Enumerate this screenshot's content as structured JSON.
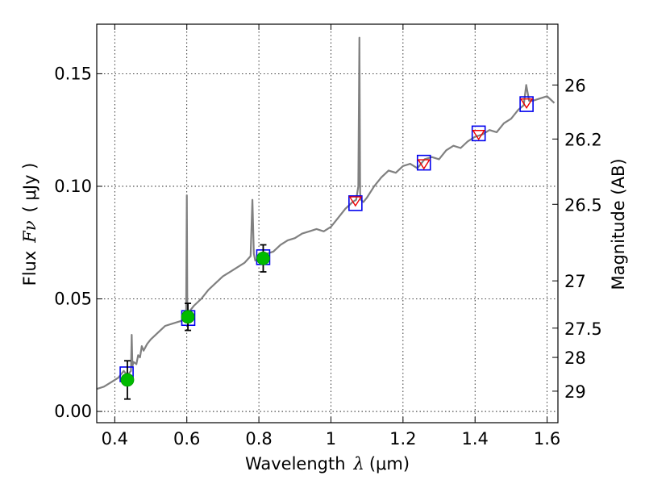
{
  "chart_data": {
    "type": "line",
    "title": "",
    "xlabel": "Wavelength",
    "xlabel_symbol": "λ",
    "xlabel_unit": "(μm)",
    "ylabel": "Flux",
    "ylabel_symbol": "Fν",
    "ylabel_unit": "( μJy )",
    "y2label": "Magnitude (AB)",
    "xlim": [
      0.35,
      1.63
    ],
    "ylim": [
      -0.005,
      0.172
    ],
    "x_ticks": [
      0.4,
      0.6,
      0.8,
      1.0,
      1.2,
      1.4,
      1.6
    ],
    "x_tick_labels": [
      "0.4",
      "0.6",
      "0.8",
      "1",
      "1.2",
      "1.4",
      "1.6"
    ],
    "y_ticks": [
      0.0,
      0.05,
      0.1,
      0.15
    ],
    "y_tick_labels": [
      "0.00",
      "0.05",
      "0.10",
      "0.15"
    ],
    "y2_ticks": [
      {
        "flux": 0.145,
        "label": "26"
      },
      {
        "flux": 0.121,
        "label": "26.2"
      },
      {
        "flux": 0.092,
        "label": "26.5"
      },
      {
        "flux": 0.058,
        "label": "27"
      },
      {
        "flux": 0.037,
        "label": "27.5"
      },
      {
        "flux": 0.024,
        "label": "28"
      },
      {
        "flux": 0.009,
        "label": "29"
      }
    ],
    "grid": true,
    "spectrum": {
      "name": "model spectrum",
      "color": "#808080",
      "x": [
        0.35,
        0.37,
        0.39,
        0.41,
        0.425,
        0.435,
        0.44,
        0.445,
        0.447,
        0.449,
        0.452,
        0.46,
        0.465,
        0.47,
        0.475,
        0.48,
        0.49,
        0.5,
        0.52,
        0.54,
        0.56,
        0.58,
        0.598,
        0.6,
        0.6015,
        0.603,
        0.61,
        0.62,
        0.64,
        0.66,
        0.68,
        0.7,
        0.72,
        0.74,
        0.76,
        0.777,
        0.782,
        0.786,
        0.79,
        0.8,
        0.82,
        0.84,
        0.86,
        0.88,
        0.9,
        0.92,
        0.94,
        0.96,
        0.98,
        1.0,
        1.02,
        1.04,
        1.06,
        1.07,
        1.076,
        1.079,
        1.081,
        1.083,
        1.09,
        1.1,
        1.12,
        1.14,
        1.16,
        1.18,
        1.2,
        1.22,
        1.24,
        1.26,
        1.28,
        1.3,
        1.32,
        1.34,
        1.36,
        1.38,
        1.4,
        1.42,
        1.44,
        1.46,
        1.48,
        1.5,
        1.52,
        1.535,
        1.542,
        1.55,
        1.56,
        1.58,
        1.6,
        1.62
      ],
      "y": [
        0.01,
        0.011,
        0.013,
        0.015,
        0.018,
        0.016,
        0.017,
        0.018,
        0.034,
        0.02,
        0.022,
        0.021,
        0.025,
        0.024,
        0.029,
        0.027,
        0.03,
        0.032,
        0.035,
        0.038,
        0.039,
        0.04,
        0.041,
        0.096,
        0.04,
        0.042,
        0.045,
        0.047,
        0.05,
        0.054,
        0.057,
        0.06,
        0.062,
        0.064,
        0.066,
        0.069,
        0.094,
        0.07,
        0.067,
        0.068,
        0.07,
        0.071,
        0.074,
        0.076,
        0.077,
        0.079,
        0.08,
        0.081,
        0.08,
        0.082,
        0.086,
        0.09,
        0.093,
        0.094,
        0.1,
        0.166,
        0.097,
        0.094,
        0.093,
        0.095,
        0.1,
        0.104,
        0.107,
        0.106,
        0.109,
        0.11,
        0.108,
        0.112,
        0.113,
        0.112,
        0.116,
        0.118,
        0.117,
        0.12,
        0.122,
        0.123,
        0.125,
        0.124,
        0.128,
        0.13,
        0.134,
        0.136,
        0.145,
        0.138,
        0.138,
        0.139,
        0.14,
        0.137
      ]
    },
    "photometry_points": [
      {
        "x": 0.435,
        "y": 0.014,
        "err": 0.0085,
        "color": "#00bb00"
      },
      {
        "x": 0.603,
        "y": 0.042,
        "err": 0.006,
        "color": "#00bb00"
      },
      {
        "x": 0.812,
        "y": 0.068,
        "err": 0.006,
        "color": "#00bb00"
      }
    ],
    "model_squares": [
      {
        "x": 0.433,
        "y": 0.0165
      },
      {
        "x": 0.604,
        "y": 0.0415
      },
      {
        "x": 0.812,
        "y": 0.0685
      },
      {
        "x": 1.068,
        "y": 0.0925
      },
      {
        "x": 1.258,
        "y": 0.1105
      },
      {
        "x": 1.41,
        "y": 0.1235
      },
      {
        "x": 1.543,
        "y": 0.1365
      }
    ],
    "ir_triangles": [
      {
        "x": 1.068,
        "y": 0.0935
      },
      {
        "x": 1.258,
        "y": 0.11
      },
      {
        "x": 1.41,
        "y": 0.123
      },
      {
        "x": 1.543,
        "y": 0.137
      }
    ],
    "colors": {
      "square_edge": "#0000ee",
      "triangle_edge": "#ee0000",
      "errorbar": "#000000"
    }
  }
}
